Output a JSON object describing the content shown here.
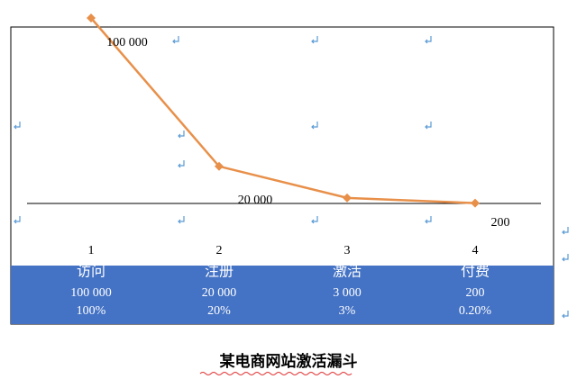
{
  "chart_data": {
    "type": "line",
    "x": [
      1,
      2,
      3,
      4
    ],
    "xlim": [
      0.5,
      4.5
    ],
    "xticks": [
      1,
      2,
      3,
      4
    ],
    "ylim": [
      0,
      100000
    ],
    "series": [
      {
        "color": "#e8904a",
        "values": [
          100000,
          20000,
          3000,
          200
        ],
        "value_labels": [
          "100 000",
          "20 000",
          null,
          "200"
        ]
      }
    ]
  },
  "table": {
    "rows": [
      [
        "访问",
        "注册",
        "激活",
        "付费"
      ],
      [
        "100 000",
        "20 000",
        "3 000",
        "200"
      ],
      [
        "100%",
        "20%",
        "3%",
        "0.20%"
      ]
    ]
  },
  "caption": "某电商网站激活漏斗"
}
